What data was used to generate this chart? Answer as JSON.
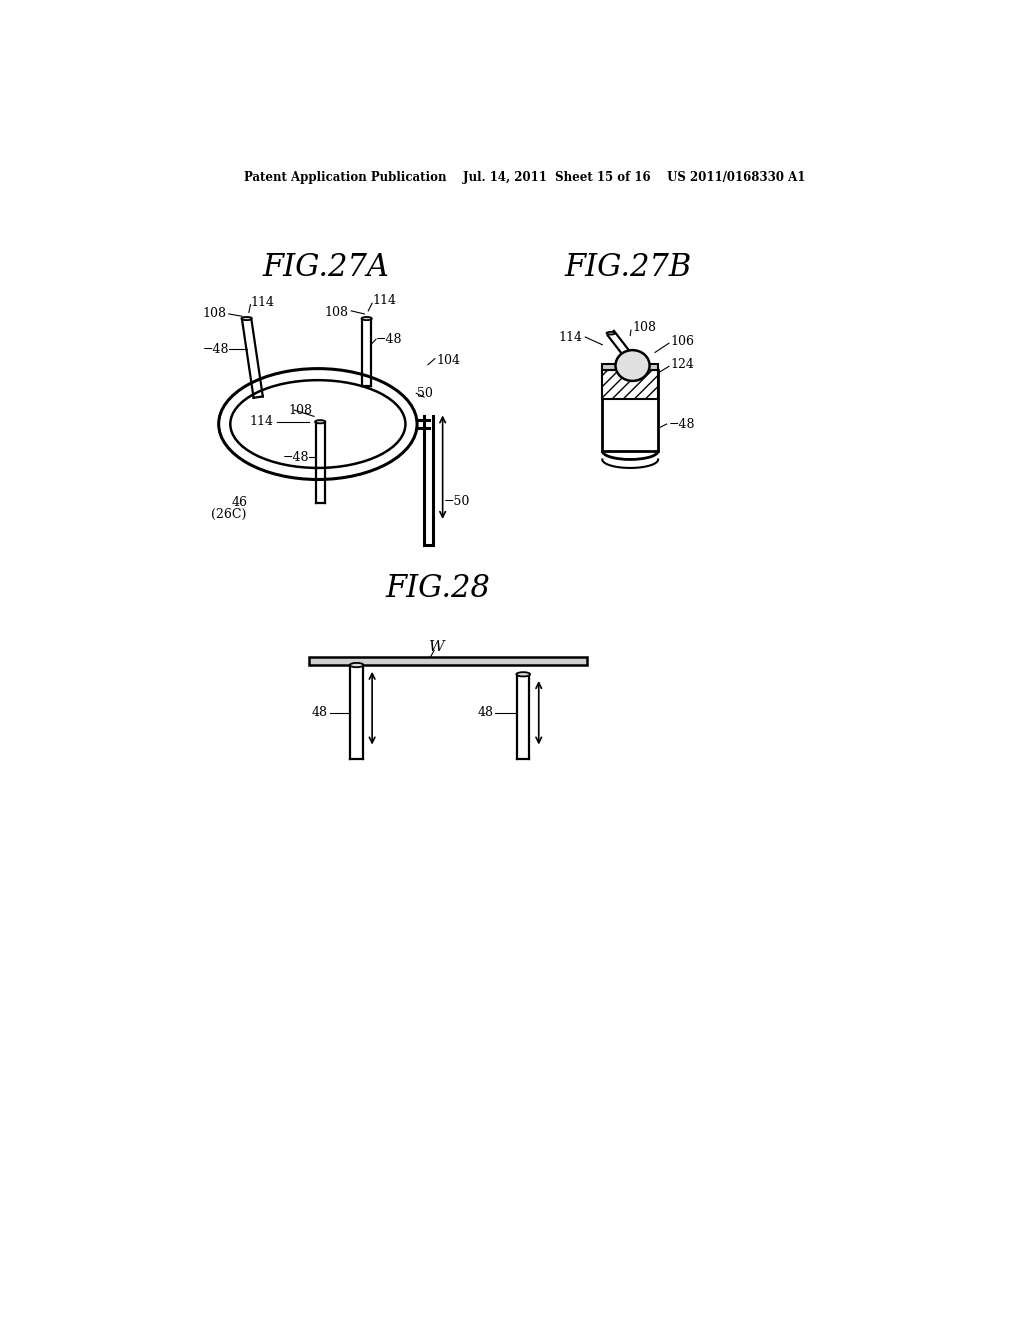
{
  "background_color": "#ffffff",
  "header_text": "Patent Application Publication    Jul. 14, 2011  Sheet 15 of 16    US 2011/0168330 A1",
  "fig27a_title": "FIG.27A",
  "fig27b_title": "FIG.27B",
  "fig28_title": "FIG.28",
  "line_color": "#000000"
}
